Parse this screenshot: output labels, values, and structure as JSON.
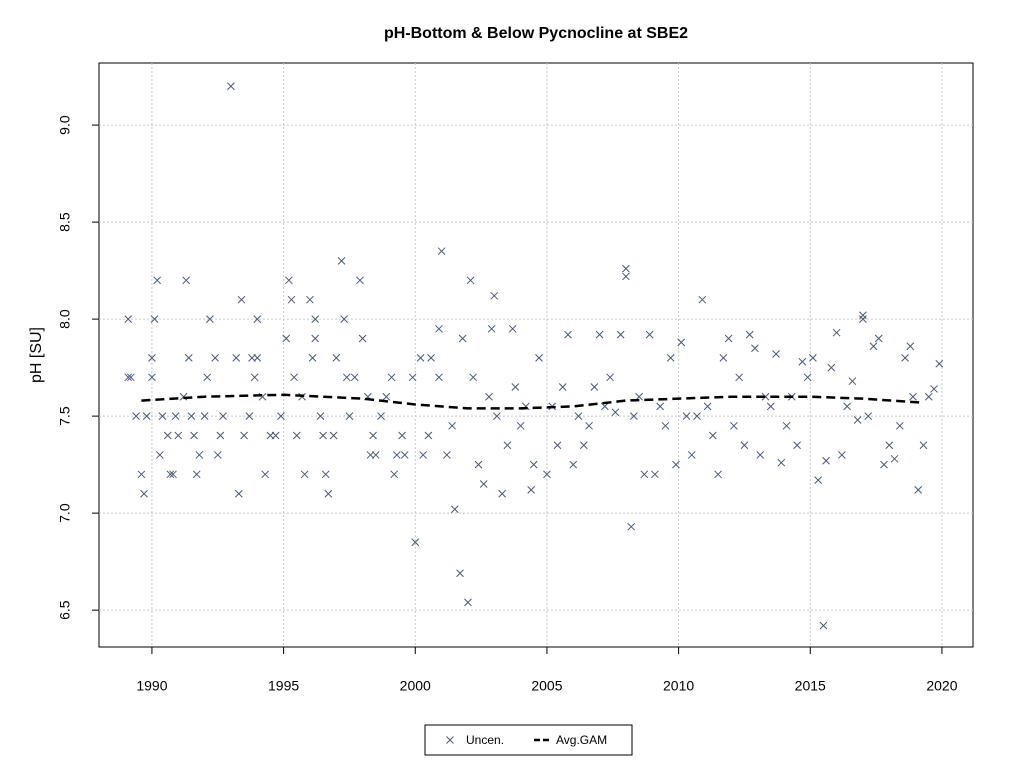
{
  "chart_data": {
    "type": "scatter",
    "title": "pH-Bottom & Below Pycnocline at SBE2",
    "ylabel": "pH [SU]",
    "xlim": [
      1987.99,
      2021.18
    ],
    "ylim": [
      6.31,
      9.32
    ],
    "xticks": [
      1990,
      1995,
      2000,
      2005,
      2010,
      2015,
      2020
    ],
    "yticks": [
      6.5,
      {
        "value": 7,
        "label": "7.0"
      },
      7.5,
      {
        "value": 8,
        "label": "8.0"
      },
      8.5,
      {
        "value": 9,
        "label": "9.0"
      }
    ],
    "grid": true,
    "legend": "bottom",
    "series": [
      {
        "name": "Uncen.",
        "color": "#4a5878",
        "marker": "x",
        "x": [
          1989.1,
          1989.1,
          1989.2,
          1989.4,
          1989.6,
          1989.7,
          1989.8,
          1990.0,
          1990.0,
          1990.1,
          1990.2,
          1990.3,
          1990.4,
          1990.6,
          1990.7,
          1990.8,
          1990.9,
          1991.0,
          1991.2,
          1991.3,
          1991.4,
          1991.5,
          1991.6,
          1991.7,
          1991.8,
          1992.0,
          1992.1,
          1992.2,
          1992.4,
          1992.5,
          1992.6,
          1992.7,
          1993.0,
          1993.2,
          1993.3,
          1993.4,
          1993.5,
          1993.7,
          1993.8,
          1993.9,
          1994.0,
          1994.0,
          1994.2,
          1994.3,
          1994.5,
          1994.7,
          1994.9,
          1995.1,
          1995.2,
          1995.3,
          1995.4,
          1995.5,
          1995.7,
          1995.8,
          1996.0,
          1996.1,
          1996.2,
          1996.2,
          1996.4,
          1996.5,
          1996.6,
          1996.7,
          1996.9,
          1997.0,
          1997.2,
          1997.3,
          1997.4,
          1997.5,
          1997.7,
          1997.9,
          1998.0,
          1998.2,
          1998.3,
          1998.4,
          1998.5,
          1998.7,
          1998.9,
          1999.1,
          1999.2,
          1999.3,
          1999.5,
          1999.6,
          1999.9,
          2000.0,
          2000.2,
          2000.3,
          2000.5,
          2000.6,
          2000.9,
          2000.9,
          2001.0,
          2001.2,
          2001.4,
          2001.5,
          2001.7,
          2001.8,
          2002.0,
          2002.1,
          2002.2,
          2002.4,
          2002.6,
          2002.8,
          2002.9,
          2003.0,
          2003.1,
          2003.3,
          2003.5,
          2003.7,
          2003.8,
          2004.0,
          2004.2,
          2004.4,
          2004.5,
          2004.7,
          2005.0,
          2005.2,
          2005.4,
          2005.6,
          2005.8,
          2006.0,
          2006.2,
          2006.4,
          2006.6,
          2006.8,
          2007.0,
          2007.2,
          2007.4,
          2007.6,
          2007.8,
          2008.0,
          2008.0,
          2008.2,
          2008.3,
          2008.5,
          2008.7,
          2008.9,
          2009.1,
          2009.3,
          2009.5,
          2009.7,
          2009.9,
          2010.1,
          2010.3,
          2010.5,
          2010.7,
          2010.9,
          2011.1,
          2011.3,
          2011.5,
          2011.7,
          2011.9,
          2012.1,
          2012.3,
          2012.5,
          2012.7,
          2012.9,
          2013.1,
          2013.3,
          2013.5,
          2013.7,
          2013.9,
          2014.1,
          2014.3,
          2014.5,
          2014.7,
          2014.9,
          2015.1,
          2015.3,
          2015.5,
          2015.6,
          2015.8,
          2016.0,
          2016.2,
          2016.4,
          2016.6,
          2016.8,
          2017.0,
          2017.0,
          2017.2,
          2017.4,
          2017.6,
          2017.8,
          2018.0,
          2018.2,
          2018.4,
          2018.6,
          2018.8,
          2018.9,
          2019.1,
          2019.3,
          2019.5,
          2019.7,
          2019.9
        ],
        "values": [
          8.0,
          7.7,
          7.7,
          7.5,
          7.2,
          7.1,
          7.5,
          7.7,
          7.8,
          8.0,
          8.2,
          7.3,
          7.5,
          7.4,
          7.2,
          7.2,
          7.5,
          7.4,
          7.6,
          8.2,
          7.8,
          7.5,
          7.4,
          7.2,
          7.3,
          7.5,
          7.7,
          8.0,
          7.8,
          7.3,
          7.4,
          7.5,
          9.2,
          7.8,
          7.1,
          8.1,
          7.4,
          7.5,
          7.8,
          7.7,
          8.0,
          7.8,
          7.6,
          7.2,
          7.4,
          7.4,
          7.5,
          7.9,
          8.2,
          8.1,
          7.7,
          7.4,
          7.6,
          7.2,
          8.1,
          7.8,
          7.9,
          8.0,
          7.5,
          7.4,
          7.2,
          7.1,
          7.4,
          7.8,
          8.3,
          8.0,
          7.7,
          7.5,
          7.7,
          8.2,
          7.9,
          7.6,
          7.3,
          7.4,
          7.3,
          7.5,
          7.6,
          7.7,
          7.2,
          7.3,
          7.4,
          7.3,
          7.7,
          6.85,
          7.8,
          7.3,
          7.4,
          7.8,
          7.95,
          7.7,
          8.35,
          7.3,
          7.45,
          7.02,
          6.69,
          7.9,
          6.54,
          8.2,
          7.7,
          7.25,
          7.15,
          7.6,
          7.95,
          8.12,
          7.5,
          7.1,
          7.35,
          7.95,
          7.65,
          7.45,
          7.55,
          7.12,
          7.25,
          7.8,
          7.2,
          7.55,
          7.35,
          7.65,
          7.92,
          7.25,
          7.5,
          7.35,
          7.45,
          7.65,
          7.92,
          7.55,
          7.7,
          7.52,
          7.92,
          8.26,
          8.22,
          6.93,
          7.5,
          7.6,
          7.2,
          7.92,
          7.2,
          7.55,
          7.45,
          7.8,
          7.25,
          7.88,
          7.5,
          7.3,
          7.5,
          8.1,
          7.55,
          7.4,
          7.2,
          7.8,
          7.9,
          7.45,
          7.7,
          7.35,
          7.92,
          7.85,
          7.3,
          7.6,
          7.55,
          7.82,
          7.26,
          7.45,
          7.6,
          7.35,
          7.78,
          7.7,
          7.8,
          7.17,
          6.42,
          7.27,
          7.75,
          7.93,
          7.3,
          7.55,
          7.68,
          7.48,
          8.02,
          8.0,
          7.5,
          7.86,
          7.9,
          7.25,
          7.35,
          7.28,
          7.45,
          7.8,
          7.86,
          7.6,
          7.12,
          7.35,
          7.6,
          7.64,
          7.77
        ]
      },
      {
        "name": "Avg.GAM",
        "color": "#000000",
        "linestyle": "dashed",
        "x": [
          1989.6,
          1992,
          1995,
          1998,
          2000,
          2002,
          2004,
          2006,
          2008,
          2010,
          2012,
          2015,
          2017,
          2019.2
        ],
        "values": [
          7.58,
          7.6,
          7.61,
          7.59,
          7.56,
          7.54,
          7.54,
          7.55,
          7.58,
          7.59,
          7.6,
          7.6,
          7.59,
          7.57
        ]
      }
    ]
  }
}
